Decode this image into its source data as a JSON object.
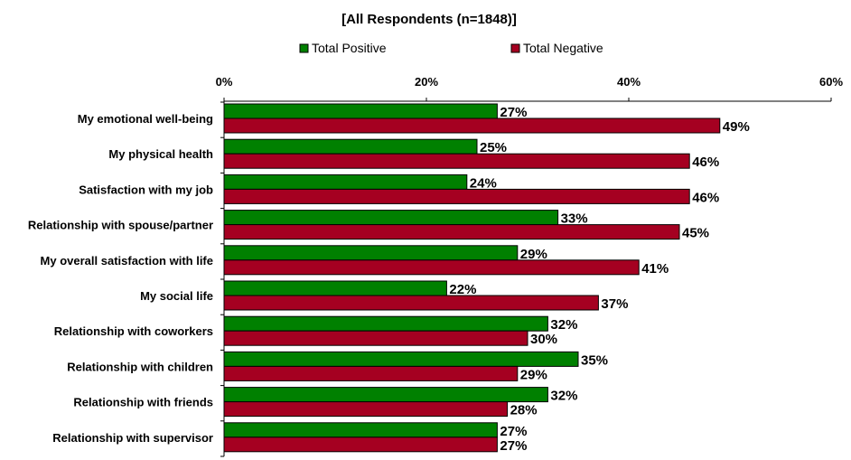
{
  "chart_data": {
    "type": "bar",
    "orientation": "horizontal",
    "title": "[All Respondents (n=1848)]",
    "categories": [
      "My emotional well-being",
      "My physical health",
      "Satisfaction with my job",
      "Relationship with spouse/partner",
      "My overall satisfaction with life",
      "My social life",
      "Relationship with coworkers",
      "Relationship with children",
      "Relationship with friends",
      "Relationship with supervisor"
    ],
    "series": [
      {
        "name": "Total Positive",
        "color": "#008000",
        "values": [
          27,
          25,
          24,
          33,
          29,
          22,
          32,
          35,
          32,
          27
        ]
      },
      {
        "name": "Total Negative",
        "color": "#A50021",
        "values": [
          49,
          46,
          46,
          45,
          41,
          37,
          30,
          29,
          28,
          27
        ]
      }
    ],
    "xlim": [
      0,
      60
    ],
    "ticks": [
      "0%",
      "20%",
      "40%",
      "60%"
    ],
    "tick_values": [
      0,
      20,
      40,
      60
    ],
    "value_suffix": "%",
    "legend_position": "top",
    "grid": false
  }
}
